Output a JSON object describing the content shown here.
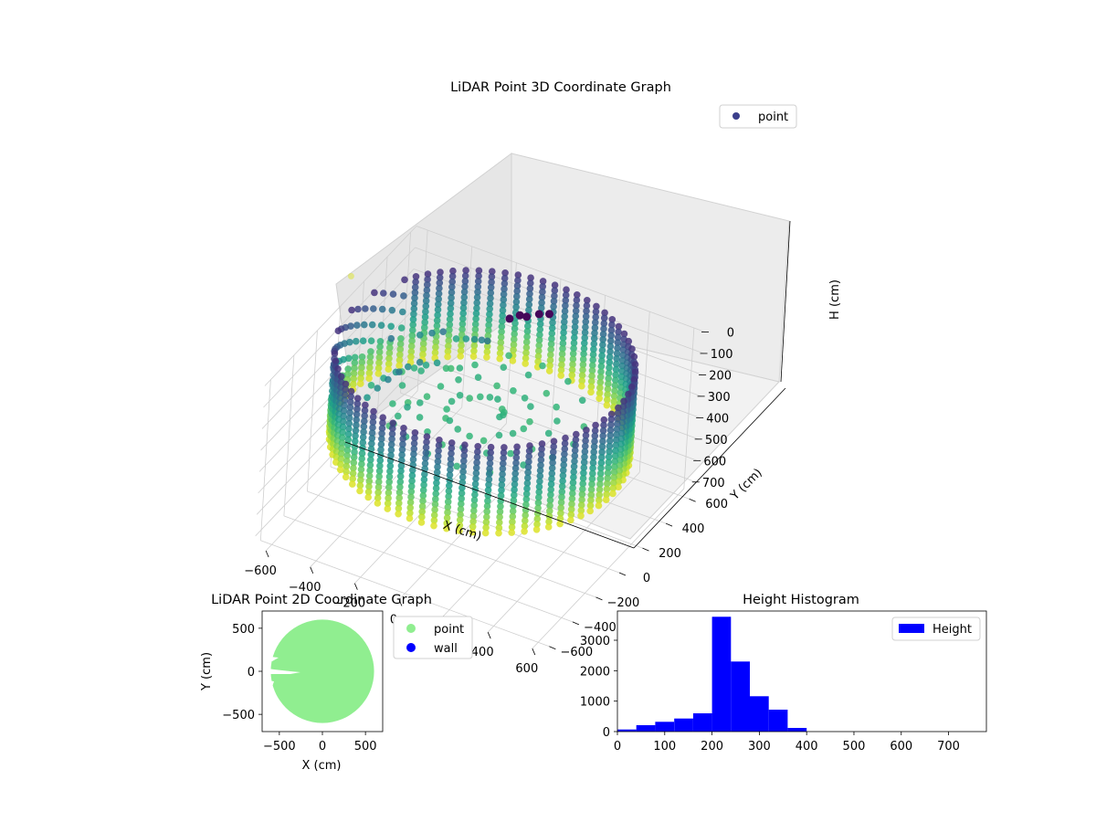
{
  "chart_data": [
    {
      "type": "scatter3d",
      "title": "LiDAR Point 3D Coordinate Graph",
      "xlabel": "X (cm)",
      "ylabel": "Y (cm)",
      "zlabel": "H (cm)",
      "x_ticks": [
        -600,
        -400,
        -200,
        0,
        200,
        400,
        600
      ],
      "y_ticks": [
        -600,
        -400,
        -200,
        0,
        200,
        400,
        600
      ],
      "z_ticks": [
        0,
        100,
        200,
        300,
        400,
        500,
        600,
        700
      ],
      "xlim": [
        -650,
        650
      ],
      "ylim": [
        -650,
        650
      ],
      "zlim": [
        0,
        750
      ],
      "z_inverted": true,
      "colormap": "viridis",
      "legend": {
        "location": "upper-right",
        "entries": [
          {
            "label": "point",
            "color": "#3b3f8c"
          }
        ]
      },
      "series": [
        {
          "label": "point",
          "shape": "cylindrical wall",
          "radius_cm": 600,
          "height_range_cm": [
            0,
            400
          ]
        }
      ]
    },
    {
      "type": "scatter",
      "title": "LiDAR Point 2D Coordinate Graph",
      "xlabel": "X (cm)",
      "ylabel": "Y (cm)",
      "x_ticks": [
        -500,
        0,
        500
      ],
      "y_ticks": [
        500,
        0,
        -500
      ],
      "xlim": [
        -700,
        700
      ],
      "ylim": [
        -700,
        700
      ],
      "legend": {
        "location": "outside-right",
        "entries": [
          {
            "label": "point",
            "color": "#90ee90"
          },
          {
            "label": "wall",
            "color": "#0000ff"
          }
        ]
      },
      "series": [
        {
          "label": "point",
          "color": "#90ee90",
          "shape": "filled disk",
          "radius_cm": 600
        }
      ]
    },
    {
      "type": "bar",
      "title": "Height Histogram",
      "xlabel": "",
      "ylabel": "",
      "bin_width": 40,
      "bins": [
        0,
        40,
        80,
        120,
        160,
        200,
        240,
        280,
        320,
        360
      ],
      "values": [
        70,
        210,
        320,
        430,
        600,
        3770,
        2300,
        1160,
        720,
        120
      ],
      "x_ticks": [
        0,
        100,
        200,
        300,
        400,
        500,
        600,
        700
      ],
      "y_ticks": [
        0,
        1000,
        2000,
        3000
      ],
      "xlim": [
        0,
        780
      ],
      "ylim": [
        0,
        3960
      ],
      "color": "#0000ff",
      "legend": {
        "location": "upper-right",
        "entries": [
          {
            "label": "Height",
            "color": "#0000ff"
          }
        ]
      }
    }
  ]
}
